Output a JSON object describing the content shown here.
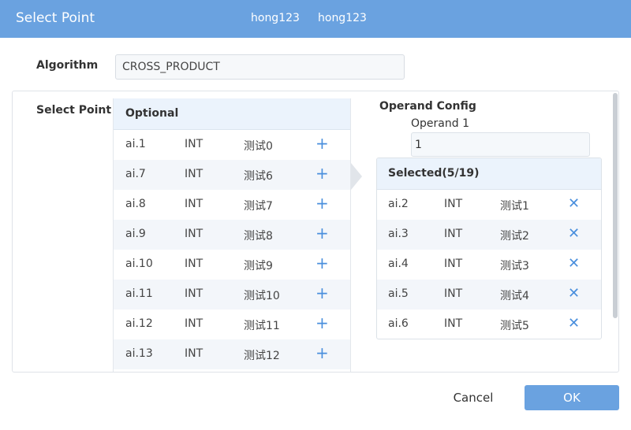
{
  "dialog": {
    "title": "Select Point",
    "tags": [
      "hong123",
      "hong123"
    ]
  },
  "algorithm": {
    "label": "Algorithm",
    "value": "CROSS_PRODUCT"
  },
  "select_point": {
    "label": "Select Point"
  },
  "optional": {
    "header": "Optional",
    "rows": [
      {
        "id": "ai.1",
        "type": "INT",
        "name": "测试0"
      },
      {
        "id": "ai.7",
        "type": "INT",
        "name": "测试6"
      },
      {
        "id": "ai.8",
        "type": "INT",
        "name": "测试7"
      },
      {
        "id": "ai.9",
        "type": "INT",
        "name": "测试8"
      },
      {
        "id": "ai.10",
        "type": "INT",
        "name": "测试9"
      },
      {
        "id": "ai.11",
        "type": "INT",
        "name": "测试10"
      },
      {
        "id": "ai.12",
        "type": "INT",
        "name": "测试11"
      },
      {
        "id": "ai.13",
        "type": "INT",
        "name": "测试12"
      }
    ]
  },
  "operand_config": {
    "title": "Operand Config",
    "operand_label": "Operand 1",
    "operand_value": "1"
  },
  "selected": {
    "header": "Selected(5/19)",
    "rows": [
      {
        "id": "ai.2",
        "type": "INT",
        "name": "测试1"
      },
      {
        "id": "ai.3",
        "type": "INT",
        "name": "测试2"
      },
      {
        "id": "ai.4",
        "type": "INT",
        "name": "测试3"
      },
      {
        "id": "ai.5",
        "type": "INT",
        "name": "测试4"
      },
      {
        "id": "ai.6",
        "type": "INT",
        "name": "测试5"
      }
    ]
  },
  "actions": {
    "cancel": "Cancel",
    "ok": "OK"
  },
  "icons": {
    "add": "plus-icon",
    "remove": "close-icon",
    "transfer": "arrow-right-icon"
  },
  "colors": {
    "accent": "#6aa2e0",
    "icon": "#4a8fdd",
    "header_bg": "#ebf3fc"
  }
}
